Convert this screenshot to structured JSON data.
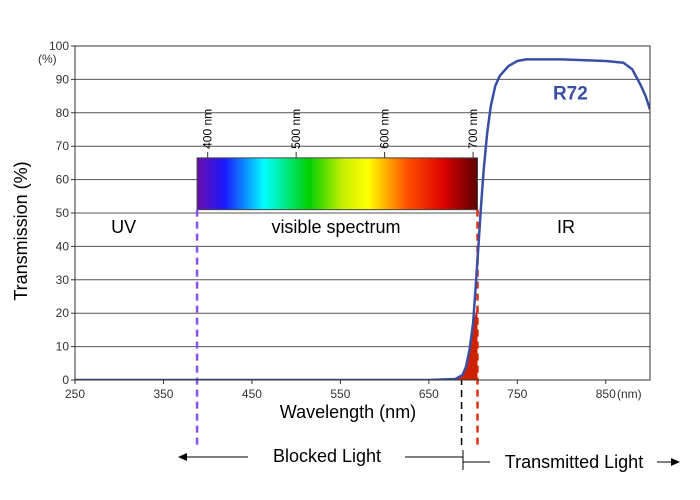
{
  "chart_data": {
    "type": "line",
    "xlabel": "Wavelength (nm)",
    "ylabel": "Transmission (%)",
    "x_unit_label": "(nm)",
    "y_unit_label": "(%)",
    "xlim": [
      250,
      900
    ],
    "ylim": [
      0,
      100
    ],
    "x_ticks": [
      250,
      350,
      450,
      550,
      650,
      750,
      850
    ],
    "y_ticks": [
      0,
      10,
      20,
      30,
      40,
      50,
      60,
      70,
      80,
      90,
      100
    ],
    "grid": "horizontal",
    "series": [
      {
        "name": "R72",
        "color": "#3a4fa3",
        "x": [
          250,
          400,
          550,
          650,
          680,
          688,
          692,
          696,
          700,
          703,
          706,
          709,
          712,
          716,
          720,
          725,
          730,
          740,
          750,
          760,
          775,
          800,
          850,
          870,
          880,
          890,
          895,
          900
        ],
        "y": [
          0,
          0,
          0,
          0,
          0.3,
          1.5,
          4,
          9,
          17,
          28,
          40,
          52,
          63,
          74,
          82,
          88,
          91,
          94,
          95.5,
          96,
          96,
          96,
          95.5,
          95,
          93,
          88,
          85,
          81
        ]
      }
    ],
    "blocked_fill": {
      "color": "#cc2200",
      "x": [
        680,
        688,
        692,
        696,
        700,
        705,
        705,
        680
      ],
      "y": [
        0,
        1.5,
        4,
        9,
        17,
        22,
        0,
        0
      ]
    },
    "spectrum_bar": {
      "x_start": 388,
      "x_end": 705,
      "y_low": 51,
      "y_high": 66.5,
      "stops": [
        {
          "offset": 0.0,
          "color": "#6a0dad"
        },
        {
          "offset": 0.1,
          "color": "#1a1aff"
        },
        {
          "offset": 0.24,
          "color": "#00ffff"
        },
        {
          "offset": 0.4,
          "color": "#00d000"
        },
        {
          "offset": 0.52,
          "color": "#c8f000"
        },
        {
          "offset": 0.61,
          "color": "#ffff00"
        },
        {
          "offset": 0.75,
          "color": "#ff5000"
        },
        {
          "offset": 0.88,
          "color": "#dd0000"
        },
        {
          "offset": 1.0,
          "color": "#5a0000"
        }
      ]
    },
    "nm_markers": [
      {
        "x": 400,
        "label": "400 nm"
      },
      {
        "x": 500,
        "label": "500 nm"
      },
      {
        "x": 600,
        "label": "600 nm"
      },
      {
        "x": 700,
        "label": "700 nm"
      }
    ],
    "region_labels": [
      {
        "text": "UV",
        "x": 305,
        "y": 44
      },
      {
        "text": "visible spectrum",
        "x": 545,
        "y": 44
      },
      {
        "text": "IR",
        "x": 805,
        "y": 44
      }
    ],
    "series_label": {
      "text": "R72",
      "x": 810,
      "y": 84
    },
    "cutoff_lines": [
      {
        "x": 388,
        "y_top": 51,
        "color": "#8855ee"
      },
      {
        "x": 705,
        "y_top": 51,
        "color": "#e03010"
      }
    ],
    "dashed_x": 687,
    "blocked_light_label": "Blocked Light",
    "transmitted_light_label": "Transmitted Light"
  }
}
